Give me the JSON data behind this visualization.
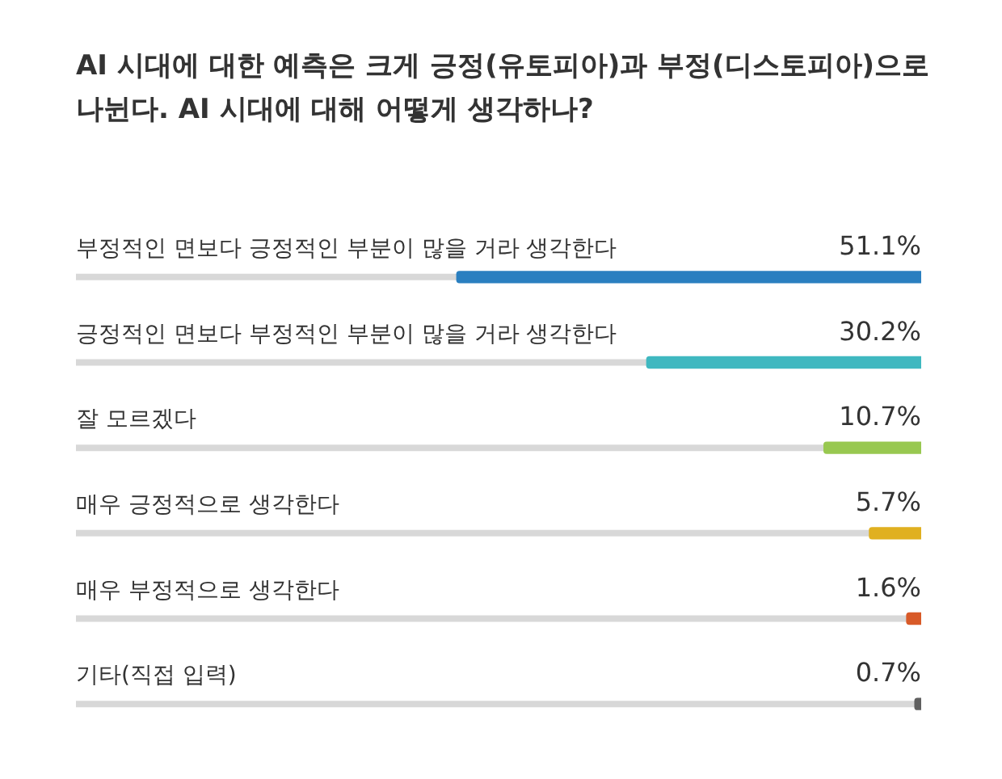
{
  "chart_data": {
    "type": "bar",
    "orientation": "horizontal",
    "title": "AI 시대에 대한 예측은 크게 긍정(유토피아)과 부정(디스토피아)으로 나뉜다. AI 시대에 대해 어떻게 생각하나?",
    "categories": [
      "부정적인 면보다 긍정적인 부분이 많을 거라 생각한다",
      "긍정적인 면보다 부정적인 부분이 많을 거라 생각한다",
      "잘 모르겠다",
      "매우 긍정적으로 생각한다",
      "매우 부정적으로 생각한다",
      "기타(직접 입력)"
    ],
    "values": [
      51.1,
      30.2,
      10.7,
      5.7,
      1.6,
      0.7
    ],
    "value_labels": [
      "51.1%",
      "30.2%",
      "10.7%",
      "5.7%",
      "1.6%",
      "0.7%"
    ],
    "colors": [
      "#2a7fc0",
      "#3fb8c0",
      "#98c850",
      "#e0b020",
      "#d85a28",
      "#606060"
    ],
    "xlim": [
      93,
      0
    ]
  }
}
